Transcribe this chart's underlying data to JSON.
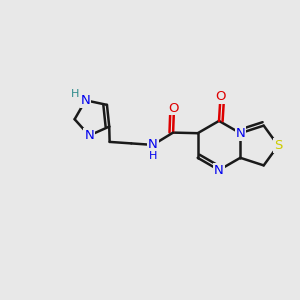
{
  "bg_color": "#e8e8e8",
  "bond_color": "#1a1a1a",
  "atom_colors": {
    "N": "#0000ee",
    "S": "#cccc00",
    "O": "#dd0000",
    "H": "#2e8b8b",
    "C": "#1a1a1a"
  },
  "font_size": 9.5,
  "bond_lw": 1.8,
  "dbl_sep": 0.12
}
